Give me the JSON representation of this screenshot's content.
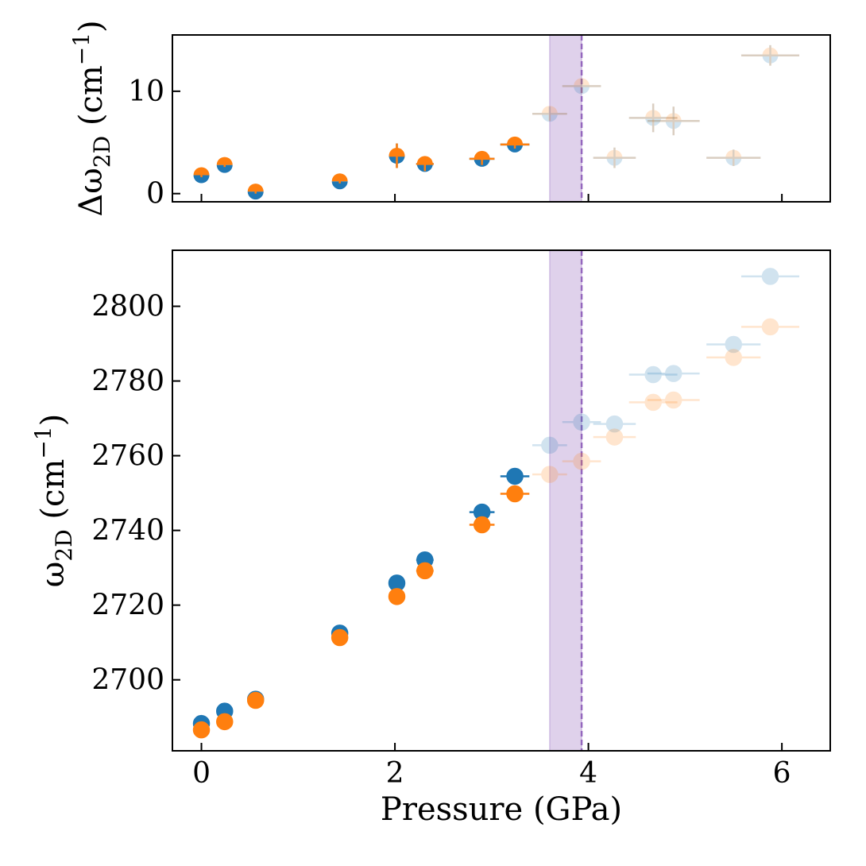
{
  "chart_data": [
    {
      "type": "scatter",
      "panel": "top",
      "xlabel": "",
      "ylabel": {
        "base": "Δω",
        "sub": "2D",
        "unit_open": " (cm",
        "sup": "−1",
        "unit_close": ")"
      },
      "xlim": [
        -0.3,
        6.5
      ],
      "ylim": [
        -0.8,
        15.5
      ],
      "yticks": [
        {
          "v": 0,
          "label": "0"
        },
        {
          "v": 10,
          "label": "10"
        }
      ],
      "xticks": [
        0,
        2,
        4,
        6
      ],
      "show_xtick_labels": false,
      "transition_band": {
        "x0": 3.6,
        "x1": 3.93,
        "color": "#9467bd",
        "opacity": 0.3
      },
      "vline": {
        "x": 3.93,
        "color": "#9467bd"
      },
      "series": [
        {
          "name": "delta-lower",
          "color": "#1f77b4",
          "points": [
            {
              "x": 0.0,
              "y": 1.8,
              "xerr": 0,
              "yerr": 0.2,
              "faded": false
            },
            {
              "x": 0.24,
              "y": 2.8,
              "xerr": 0,
              "yerr": 0.2,
              "faded": false
            },
            {
              "x": 0.56,
              "y": 0.2,
              "xerr": 0,
              "yerr": 0.2,
              "faded": false
            },
            {
              "x": 1.43,
              "y": 1.2,
              "xerr": 0,
              "yerr": 0.2,
              "faded": false
            },
            {
              "x": 2.02,
              "y": 3.7,
              "xerr": 0.08,
              "yerr": 1.2,
              "faded": false
            },
            {
              "x": 2.31,
              "y": 2.9,
              "xerr": 0.09,
              "yerr": 0.7,
              "faded": false
            },
            {
              "x": 2.9,
              "y": 3.4,
              "xerr": 0.13,
              "yerr": 0.6,
              "faded": false
            },
            {
              "x": 3.24,
              "y": 4.8,
              "xerr": 0.15,
              "yerr": 0.4,
              "faded": false
            },
            {
              "x": 3.6,
              "y": 7.8,
              "xerr": 0.18,
              "yerr": 0.7,
              "faded": true
            },
            {
              "x": 3.93,
              "y": 10.5,
              "xerr": 0.2,
              "yerr": 0.7,
              "faded": true
            },
            {
              "x": 4.27,
              "y": 3.5,
              "xerr": 0.22,
              "yerr": 1.0,
              "faded": true
            },
            {
              "x": 4.67,
              "y": 7.4,
              "xerr": 0.25,
              "yerr": 1.4,
              "faded": true
            },
            {
              "x": 4.88,
              "y": 7.1,
              "xerr": 0.27,
              "yerr": 1.4,
              "faded": true
            },
            {
              "x": 5.5,
              "y": 3.5,
              "xerr": 0.28,
              "yerr": 0.8,
              "faded": true
            },
            {
              "x": 5.88,
              "y": 13.5,
              "xerr": 0.3,
              "yerr": 1.0,
              "faded": true
            }
          ]
        },
        {
          "name": "delta-upper",
          "color": "#ff7f0e",
          "points": [
            {
              "x": 0.0,
              "y": 1.8,
              "xerr": 0,
              "yerr": 0.2,
              "faded": false
            },
            {
              "x": 0.24,
              "y": 2.8,
              "xerr": 0,
              "yerr": 0.2,
              "faded": false
            },
            {
              "x": 0.56,
              "y": 0.2,
              "xerr": 0,
              "yerr": 0.2,
              "faded": false
            },
            {
              "x": 1.43,
              "y": 1.2,
              "xerr": 0,
              "yerr": 0.2,
              "faded": false
            },
            {
              "x": 2.02,
              "y": 3.7,
              "xerr": 0.08,
              "yerr": 1.2,
              "faded": false
            },
            {
              "x": 2.31,
              "y": 2.9,
              "xerr": 0.09,
              "yerr": 0.7,
              "faded": false
            },
            {
              "x": 2.9,
              "y": 3.4,
              "xerr": 0.13,
              "yerr": 0.6,
              "faded": false
            },
            {
              "x": 3.24,
              "y": 4.8,
              "xerr": 0.15,
              "yerr": 0.4,
              "faded": false
            },
            {
              "x": 3.6,
              "y": 7.8,
              "xerr": 0.18,
              "yerr": 0.7,
              "faded": true
            },
            {
              "x": 3.93,
              "y": 10.5,
              "xerr": 0.2,
              "yerr": 0.7,
              "faded": true
            },
            {
              "x": 4.27,
              "y": 3.5,
              "xerr": 0.22,
              "yerr": 1.0,
              "faded": true
            },
            {
              "x": 4.67,
              "y": 7.4,
              "xerr": 0.25,
              "yerr": 1.4,
              "faded": true
            },
            {
              "x": 4.88,
              "y": 7.1,
              "xerr": 0.27,
              "yerr": 1.4,
              "faded": true
            },
            {
              "x": 5.5,
              "y": 3.5,
              "xerr": 0.28,
              "yerr": 0.8,
              "faded": true
            },
            {
              "x": 5.88,
              "y": 13.5,
              "xerr": 0.3,
              "yerr": 1.0,
              "faded": true
            }
          ]
        }
      ]
    },
    {
      "type": "scatter",
      "panel": "bottom",
      "xlabel": "Pressure (GPa)",
      "ylabel": {
        "base": "ω",
        "sub": "2D",
        "unit_open": " (cm",
        "sup": "−1",
        "unit_close": ")"
      },
      "xlim": [
        -0.3,
        6.5
      ],
      "ylim": [
        2681,
        2815
      ],
      "yticks": [
        {
          "v": 2700,
          "label": "2700"
        },
        {
          "v": 2720,
          "label": "2720"
        },
        {
          "v": 2740,
          "label": "2740"
        },
        {
          "v": 2760,
          "label": "2760"
        },
        {
          "v": 2780,
          "label": "2780"
        },
        {
          "v": 2800,
          "label": "2800"
        }
      ],
      "xticks": [
        0,
        2,
        4,
        6
      ],
      "xtick_labels": [
        "0",
        "2",
        "4",
        "6"
      ],
      "show_xtick_labels": true,
      "transition_band": {
        "x0": 3.6,
        "x1": 3.93,
        "color": "#9467bd",
        "opacity": 0.3
      },
      "vline": {
        "x": 3.93,
        "color": "#9467bd"
      },
      "series": [
        {
          "name": "blue-series",
          "color": "#1f77b4",
          "points": [
            {
              "x": 0.0,
              "y": 2688.3,
              "xerr": 0,
              "yerr": 0,
              "faded": false
            },
            {
              "x": 0.24,
              "y": 2691.6,
              "xerr": 0,
              "yerr": 0,
              "faded": false
            },
            {
              "x": 0.56,
              "y": 2694.8,
              "xerr": 0,
              "yerr": 0,
              "faded": false
            },
            {
              "x": 1.43,
              "y": 2712.5,
              "xerr": 0,
              "yerr": 0,
              "faded": false
            },
            {
              "x": 2.02,
              "y": 2725.9,
              "xerr": 0.08,
              "yerr": 0,
              "faded": false
            },
            {
              "x": 2.31,
              "y": 2732.1,
              "xerr": 0.09,
              "yerr": 0,
              "faded": false
            },
            {
              "x": 2.9,
              "y": 2744.9,
              "xerr": 0.13,
              "yerr": 0,
              "faded": false
            },
            {
              "x": 3.24,
              "y": 2754.5,
              "xerr": 0.15,
              "yerr": 0,
              "faded": false
            },
            {
              "x": 3.6,
              "y": 2762.8,
              "xerr": 0.18,
              "yerr": 0,
              "faded": true
            },
            {
              "x": 3.93,
              "y": 2769.0,
              "xerr": 0.2,
              "yerr": 0,
              "faded": true
            },
            {
              "x": 4.27,
              "y": 2768.5,
              "xerr": 0.22,
              "yerr": 0,
              "faded": true
            },
            {
              "x": 4.67,
              "y": 2781.7,
              "xerr": 0.25,
              "yerr": 0,
              "faded": true
            },
            {
              "x": 4.88,
              "y": 2782.0,
              "xerr": 0.27,
              "yerr": 0,
              "faded": true
            },
            {
              "x": 5.5,
              "y": 2789.8,
              "xerr": 0.28,
              "yerr": 0,
              "faded": true
            },
            {
              "x": 5.88,
              "y": 2808.0,
              "xerr": 0.3,
              "yerr": 0,
              "faded": true
            }
          ]
        },
        {
          "name": "orange-series",
          "color": "#ff7f0e",
          "points": [
            {
              "x": 0.0,
              "y": 2686.6,
              "xerr": 0,
              "yerr": 0,
              "faded": false
            },
            {
              "x": 0.24,
              "y": 2688.8,
              "xerr": 0,
              "yerr": 0,
              "faded": false
            },
            {
              "x": 0.56,
              "y": 2694.5,
              "xerr": 0,
              "yerr": 0,
              "faded": false
            },
            {
              "x": 1.43,
              "y": 2711.3,
              "xerr": 0,
              "yerr": 0,
              "faded": false
            },
            {
              "x": 2.02,
              "y": 2722.3,
              "xerr": 0.08,
              "yerr": 0,
              "faded": false
            },
            {
              "x": 2.31,
              "y": 2729.2,
              "xerr": 0.09,
              "yerr": 0,
              "faded": false
            },
            {
              "x": 2.9,
              "y": 2741.5,
              "xerr": 0.13,
              "yerr": 0,
              "faded": false
            },
            {
              "x": 3.24,
              "y": 2749.8,
              "xerr": 0.15,
              "yerr": 0,
              "faded": false
            },
            {
              "x": 3.6,
              "y": 2755.0,
              "xerr": 0.18,
              "yerr": 0,
              "faded": true
            },
            {
              "x": 3.93,
              "y": 2758.5,
              "xerr": 0.2,
              "yerr": 0,
              "faded": true
            },
            {
              "x": 4.27,
              "y": 2765.0,
              "xerr": 0.22,
              "yerr": 0,
              "faded": true
            },
            {
              "x": 4.67,
              "y": 2774.3,
              "xerr": 0.25,
              "yerr": 0,
              "faded": true
            },
            {
              "x": 4.88,
              "y": 2774.9,
              "xerr": 0.27,
              "yerr": 0,
              "faded": true
            },
            {
              "x": 5.5,
              "y": 2786.3,
              "xerr": 0.28,
              "yerr": 0,
              "faded": true
            },
            {
              "x": 5.88,
              "y": 2794.5,
              "xerr": 0.3,
              "yerr": 0,
              "faded": true
            }
          ]
        }
      ]
    }
  ]
}
